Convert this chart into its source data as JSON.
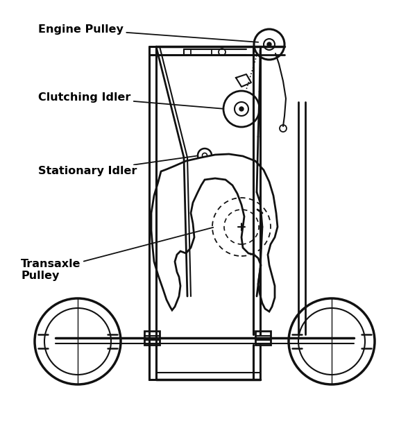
{
  "bg_color": "#ffffff",
  "line_color": "#111111",
  "labels": {
    "engine_pulley": "Engine Pulley",
    "clutching_idler": "Clutching Idler",
    "stationary_idler": "Stationary Idler",
    "transaxle_pulley": "Transaxle\nPulley"
  },
  "font_size": 11.5
}
